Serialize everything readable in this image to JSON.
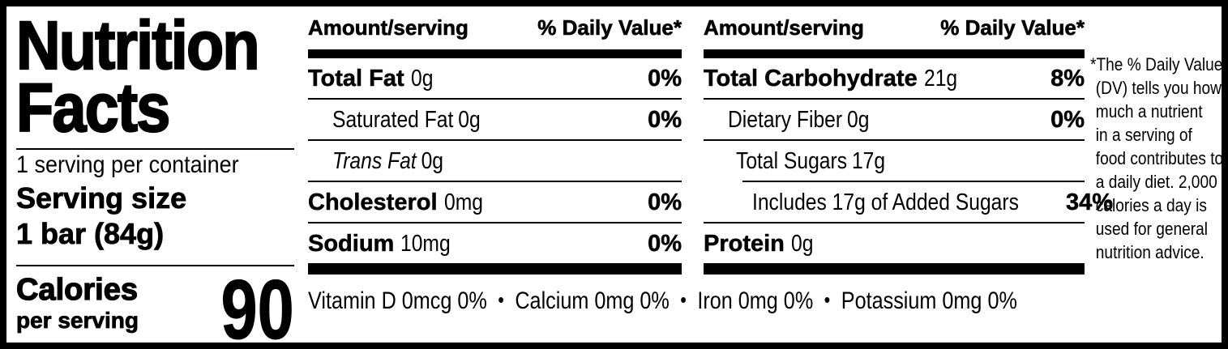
{
  "colors": {
    "ink": "#000000",
    "background": "#ffffff"
  },
  "title": {
    "line1": "Nutrition",
    "line2": "Facts"
  },
  "serving": {
    "per_container": "1 serving per container",
    "serving_size_label": "Serving size",
    "serving_size_value": "1 bar (84g)",
    "calories_label": "Calories",
    "calories_sublabel": "per serving",
    "calories_value": "90"
  },
  "columns": [
    {
      "header_amount": "Amount/serving",
      "header_dv": "% Daily Value*",
      "rows": [
        {
          "label": "Total Fat",
          "amount": "0g",
          "dv": "0%"
        },
        {
          "label": "Saturated Fat",
          "amount": "0g",
          "dv": "0%"
        },
        {
          "label": "Trans Fat",
          "amount": "0g",
          "dv": ""
        },
        {
          "label": "Cholesterol",
          "amount": "0mg",
          "dv": "0%"
        },
        {
          "label": "Sodium",
          "amount": "10mg",
          "dv": "0%"
        }
      ]
    },
    {
      "header_amount": "Amount/serving",
      "header_dv": "% Daily Value*",
      "rows": [
        {
          "label": "Total Carbohydrate",
          "amount": "21g",
          "dv": "8%"
        },
        {
          "label": "Dietary Fiber",
          "amount": "0g",
          "dv": "0%"
        },
        {
          "label": "Total Sugars",
          "amount": "17g",
          "dv": ""
        },
        {
          "label": "Includes 17g of Added Sugars",
          "amount": "",
          "dv": "34%"
        },
        {
          "label": "Protein",
          "amount": "0g",
          "dv": ""
        }
      ]
    }
  ],
  "micronutrients": {
    "separator": "•",
    "items": [
      "Vitamin D 0mcg 0%",
      "Calcium 0mg 0%",
      "Iron 0mg 0%",
      "Potassium 0mg 0%"
    ]
  },
  "footnote": {
    "lines": [
      "*The % Daily Value",
      "(DV) tells you how",
      "much a nutrient",
      "in a serving of",
      "food contributes to",
      "a daily diet. 2,000",
      "calories a day is",
      "used for general",
      "nutrition advice."
    ]
  }
}
